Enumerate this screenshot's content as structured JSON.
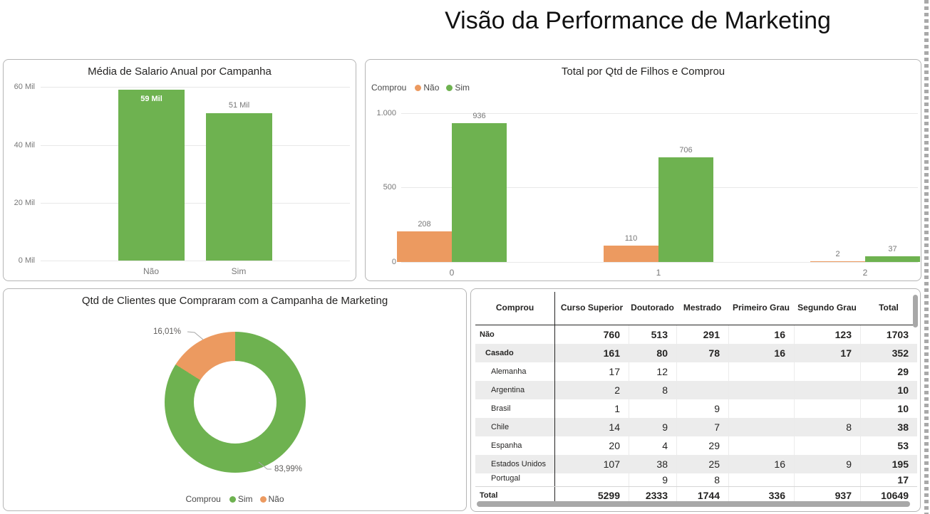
{
  "page": {
    "title": "Visão da Performance de Marketing"
  },
  "colors": {
    "green": "#6EB250",
    "orange": "#EC9A60"
  },
  "chart_data": [
    {
      "type": "bar",
      "title": "Média de Salario Anual por Campanha",
      "categories": [
        "Não",
        "Sim"
      ],
      "values": [
        59,
        51
      ],
      "value_labels": [
        "59 Mil",
        "51 Mil"
      ],
      "label_inside": [
        true,
        false
      ],
      "unit": "Mil",
      "ylim": [
        0,
        60
      ],
      "yticks": [
        {
          "v": 0,
          "label": "0 Mil"
        },
        {
          "v": 20,
          "label": "20 Mil"
        },
        {
          "v": 40,
          "label": "40 Mil"
        },
        {
          "v": 60,
          "label": "60 Mil"
        }
      ]
    },
    {
      "type": "bar",
      "title": "Total por Qtd de Filhos e Comprou",
      "legend_title": "Comprou",
      "categories": [
        "0",
        "1",
        "2"
      ],
      "series": [
        {
          "name": "Não",
          "color_key": "orange",
          "values": [
            208,
            110,
            2
          ]
        },
        {
          "name": "Sim",
          "color_key": "green",
          "values": [
            936,
            706,
            37
          ]
        }
      ],
      "value_labels": [
        [
          "208",
          "110",
          "2"
        ],
        [
          "936",
          "706",
          "37"
        ]
      ],
      "ylim": [
        0,
        1000
      ],
      "yticks": [
        {
          "v": 0,
          "label": "0"
        },
        {
          "v": 500,
          "label": "500"
        },
        {
          "v": 1000,
          "label": "1.000"
        }
      ]
    },
    {
      "type": "pie",
      "title": "Qtd de Clientes que Compraram com a Campanha de Marketing",
      "legend_title": "Comprou",
      "slices": [
        {
          "name": "Sim",
          "color_key": "green",
          "pct": 83.99,
          "label": "83,99%"
        },
        {
          "name": "Não",
          "color_key": "orange",
          "pct": 16.01,
          "label": "16,01%"
        }
      ]
    },
    {
      "type": "table",
      "columns": [
        "Comprou",
        "Curso Superior",
        "Doutorado",
        "Mestrado",
        "Primeiro Grau",
        "Segundo Grau",
        "Total"
      ],
      "rows": [
        {
          "label": "Não",
          "level": 0,
          "bold": true,
          "shaded": false,
          "cells": [
            "760",
            "513",
            "291",
            "16",
            "123",
            "1703"
          ]
        },
        {
          "label": "Casado",
          "level": 1,
          "bold": true,
          "shaded": true,
          "cells": [
            "161",
            "80",
            "78",
            "16",
            "17",
            "352"
          ]
        },
        {
          "label": "Alemanha",
          "level": 2,
          "bold": false,
          "shaded": false,
          "cells": [
            "17",
            "12",
            "",
            "",
            "",
            "29"
          ]
        },
        {
          "label": "Argentina",
          "level": 2,
          "bold": false,
          "shaded": true,
          "cells": [
            "2",
            "8",
            "",
            "",
            "",
            "10"
          ]
        },
        {
          "label": "Brasil",
          "level": 2,
          "bold": false,
          "shaded": false,
          "cells": [
            "1",
            "",
            "9",
            "",
            "",
            "10"
          ]
        },
        {
          "label": "Chile",
          "level": 2,
          "bold": false,
          "shaded": true,
          "cells": [
            "14",
            "9",
            "7",
            "",
            "8",
            "38"
          ]
        },
        {
          "label": "Espanha",
          "level": 2,
          "bold": false,
          "shaded": false,
          "cells": [
            "20",
            "4",
            "29",
            "",
            "",
            "53"
          ]
        },
        {
          "label": "Estados Unidos",
          "level": 2,
          "bold": false,
          "shaded": true,
          "cells": [
            "107",
            "38",
            "25",
            "16",
            "9",
            "195"
          ]
        },
        {
          "label": "Portugal",
          "level": 2,
          "bold": false,
          "shaded": false,
          "clipped": true,
          "cells": [
            "",
            "9",
            "8",
            "",
            "",
            "17"
          ]
        }
      ],
      "total_row": {
        "label": "Total",
        "cells": [
          "5299",
          "2333",
          "1744",
          "336",
          "937",
          "10649"
        ]
      }
    }
  ]
}
